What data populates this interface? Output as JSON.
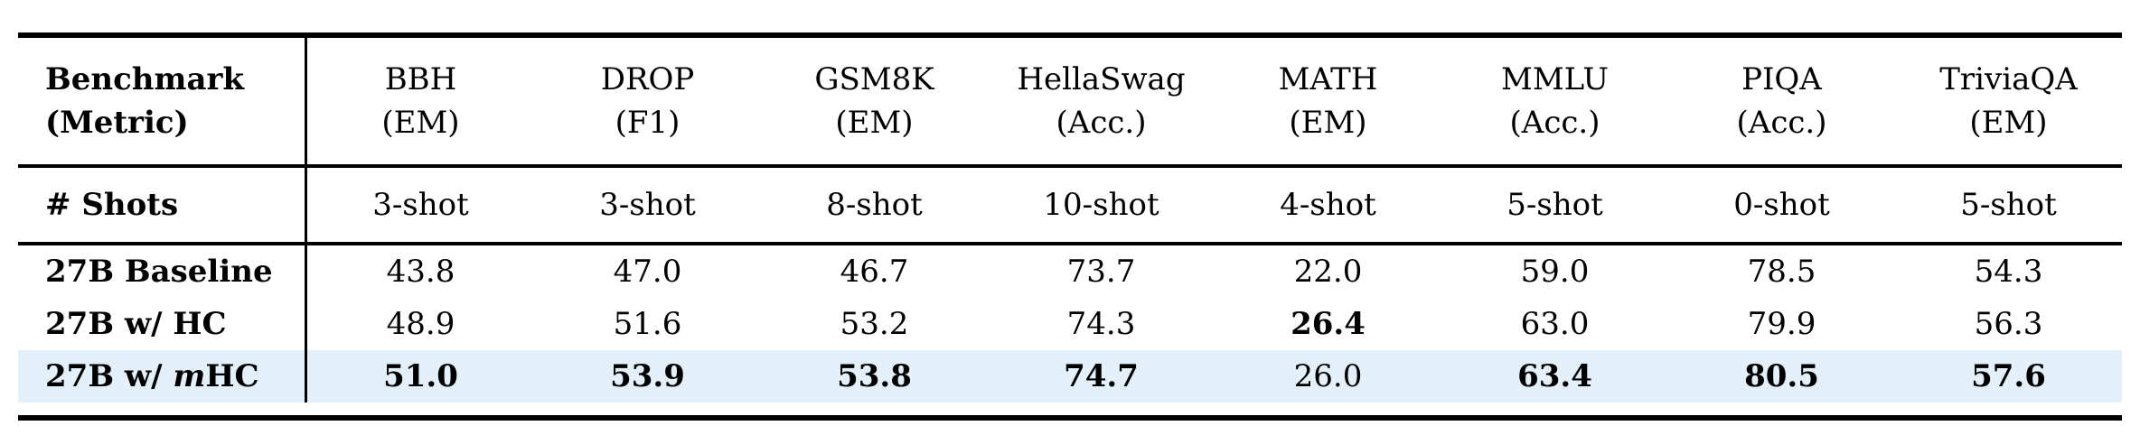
{
  "table": {
    "corner": {
      "line1": "Benchmark",
      "line2": "(Metric)"
    },
    "shots_label": "# Shots",
    "highlight_color": "#e3eff9",
    "text_color": "#000000",
    "columns": [
      {
        "name": "BBH",
        "metric": "(EM)",
        "shots": "3-shot"
      },
      {
        "name": "DROP",
        "metric": "(F1)",
        "shots": "3-shot"
      },
      {
        "name": "GSM8K",
        "metric": "(EM)",
        "shots": "8-shot"
      },
      {
        "name": "HellaSwag",
        "metric": "(Acc.)",
        "shots": "10-shot"
      },
      {
        "name": "MATH",
        "metric": "(EM)",
        "shots": "4-shot"
      },
      {
        "name": "MMLU",
        "metric": "(Acc.)",
        "shots": "5-shot"
      },
      {
        "name": "PIQA",
        "metric": "(Acc.)",
        "shots": "0-shot"
      },
      {
        "name": "TriviaQA",
        "metric": "(EM)",
        "shots": "5-shot"
      }
    ],
    "rows": [
      {
        "label_prefix": "27B Baseline",
        "label_italic": "",
        "label_suffix": "",
        "values": [
          "43.8",
          "47.0",
          "46.7",
          "73.7",
          "22.0",
          "59.0",
          "78.5",
          "54.3"
        ]
      },
      {
        "label_prefix": "27B w/ HC",
        "label_italic": "",
        "label_suffix": "",
        "values": [
          "48.9",
          "51.6",
          "53.2",
          "74.3",
          "26.4",
          "63.0",
          "79.9",
          "56.3"
        ]
      },
      {
        "label_prefix": "27B w/ ",
        "label_italic": "m",
        "label_suffix": "HC",
        "values": [
          "51.0",
          "53.9",
          "53.8",
          "74.7",
          "26.0",
          "63.4",
          "80.5",
          "57.6"
        ]
      }
    ]
  }
}
